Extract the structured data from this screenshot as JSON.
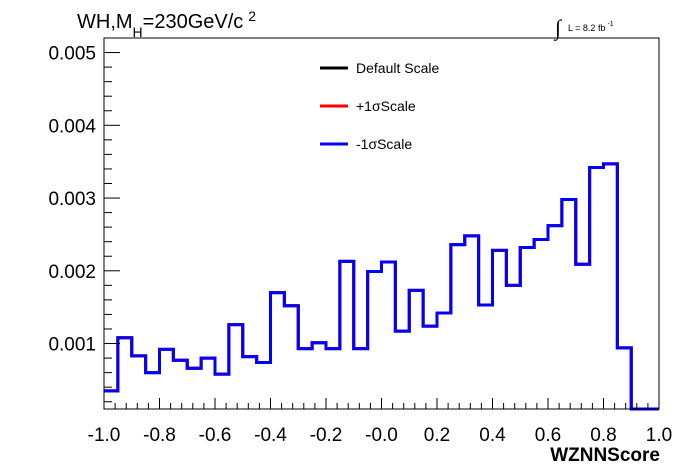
{
  "chart_data": {
    "type": "line",
    "title_parts": {
      "main": "WH,M",
      "sub": "H",
      "rest": "=230GeV/c",
      "sup": "2"
    },
    "lumi_parts": {
      "integral": "∫",
      "main": "L = 8.2 fb",
      "sup": "-1"
    },
    "xlabel": "WZNNScore",
    "ylabel": "",
    "xlim": [
      -1.0,
      1.0
    ],
    "ylim": [
      0.0001,
      0.0052
    ],
    "x_ticks": [
      "-1.0",
      "-0.8",
      "-0.6",
      "-0.4",
      "-0.2",
      "-0.0",
      "0.2",
      "0.4",
      "0.6",
      "0.8",
      "1.0"
    ],
    "x_tick_values": [
      -1.0,
      -0.8,
      -0.6,
      -0.4,
      -0.2,
      0.0,
      0.2,
      0.4,
      0.6,
      0.8,
      1.0
    ],
    "y_ticks": [
      "0.001",
      "0.002",
      "0.003",
      "0.004",
      "0.005"
    ],
    "y_tick_values": [
      0.001,
      0.002,
      0.003,
      0.004,
      0.005
    ],
    "bin_edges": [
      -1.0,
      -0.95,
      -0.9,
      -0.85,
      -0.8,
      -0.75,
      -0.7,
      -0.65,
      -0.6,
      -0.55,
      -0.5,
      -0.45,
      -0.4,
      -0.35,
      -0.3,
      -0.25,
      -0.2,
      -0.15,
      -0.1,
      -0.05,
      0.0,
      0.05,
      0.1,
      0.15,
      0.2,
      0.25,
      0.3,
      0.35,
      0.4,
      0.45,
      0.5,
      0.55,
      0.6,
      0.65,
      0.7,
      0.75,
      0.8,
      0.85,
      0.9,
      0.95,
      1.0
    ],
    "legend_position": "top-center",
    "grid": false,
    "series": [
      {
        "name": "Default Scale",
        "color": "#000000",
        "values": [
          0.00035,
          0.00108,
          0.00083,
          0.0006,
          0.00092,
          0.00077,
          0.00066,
          0.0008,
          0.00058,
          0.00126,
          0.00082,
          0.00074,
          0.0017,
          0.00152,
          0.00093,
          0.00101,
          0.00093,
          0.00213,
          0.00093,
          0.00199,
          0.00212,
          0.00117,
          0.00173,
          0.00124,
          0.00142,
          0.00236,
          0.00248,
          0.00153,
          0.00228,
          0.0018,
          0.00232,
          0.00243,
          0.00262,
          0.00298,
          0.00209,
          0.00342,
          0.00347,
          0.00094,
          3e-05,
          3e-05
        ]
      },
      {
        "name": "+1σScale",
        "color": "#ff0000",
        "values": [
          0.00035,
          0.00108,
          0.00083,
          0.0006,
          0.00092,
          0.00077,
          0.00066,
          0.0008,
          0.00058,
          0.00126,
          0.00082,
          0.00074,
          0.0017,
          0.00152,
          0.00093,
          0.00101,
          0.00093,
          0.00213,
          0.00093,
          0.00199,
          0.00212,
          0.00117,
          0.00173,
          0.00124,
          0.00142,
          0.00236,
          0.00248,
          0.00153,
          0.00228,
          0.0018,
          0.00232,
          0.00243,
          0.00262,
          0.00298,
          0.00209,
          0.00342,
          0.00347,
          0.00094,
          3e-05,
          3e-05
        ]
      },
      {
        "name": "-1σScale",
        "color": "#0000ff",
        "values": [
          0.00035,
          0.00108,
          0.00083,
          0.0006,
          0.00092,
          0.00077,
          0.00066,
          0.0008,
          0.00058,
          0.00126,
          0.00082,
          0.00074,
          0.0017,
          0.00152,
          0.00093,
          0.00101,
          0.00093,
          0.00213,
          0.00093,
          0.00199,
          0.00212,
          0.00117,
          0.00173,
          0.00124,
          0.00142,
          0.00236,
          0.00248,
          0.00153,
          0.00228,
          0.0018,
          0.00232,
          0.00243,
          0.00262,
          0.00298,
          0.00209,
          0.00342,
          0.00347,
          0.00094,
          3e-05,
          3e-05
        ]
      }
    ]
  }
}
